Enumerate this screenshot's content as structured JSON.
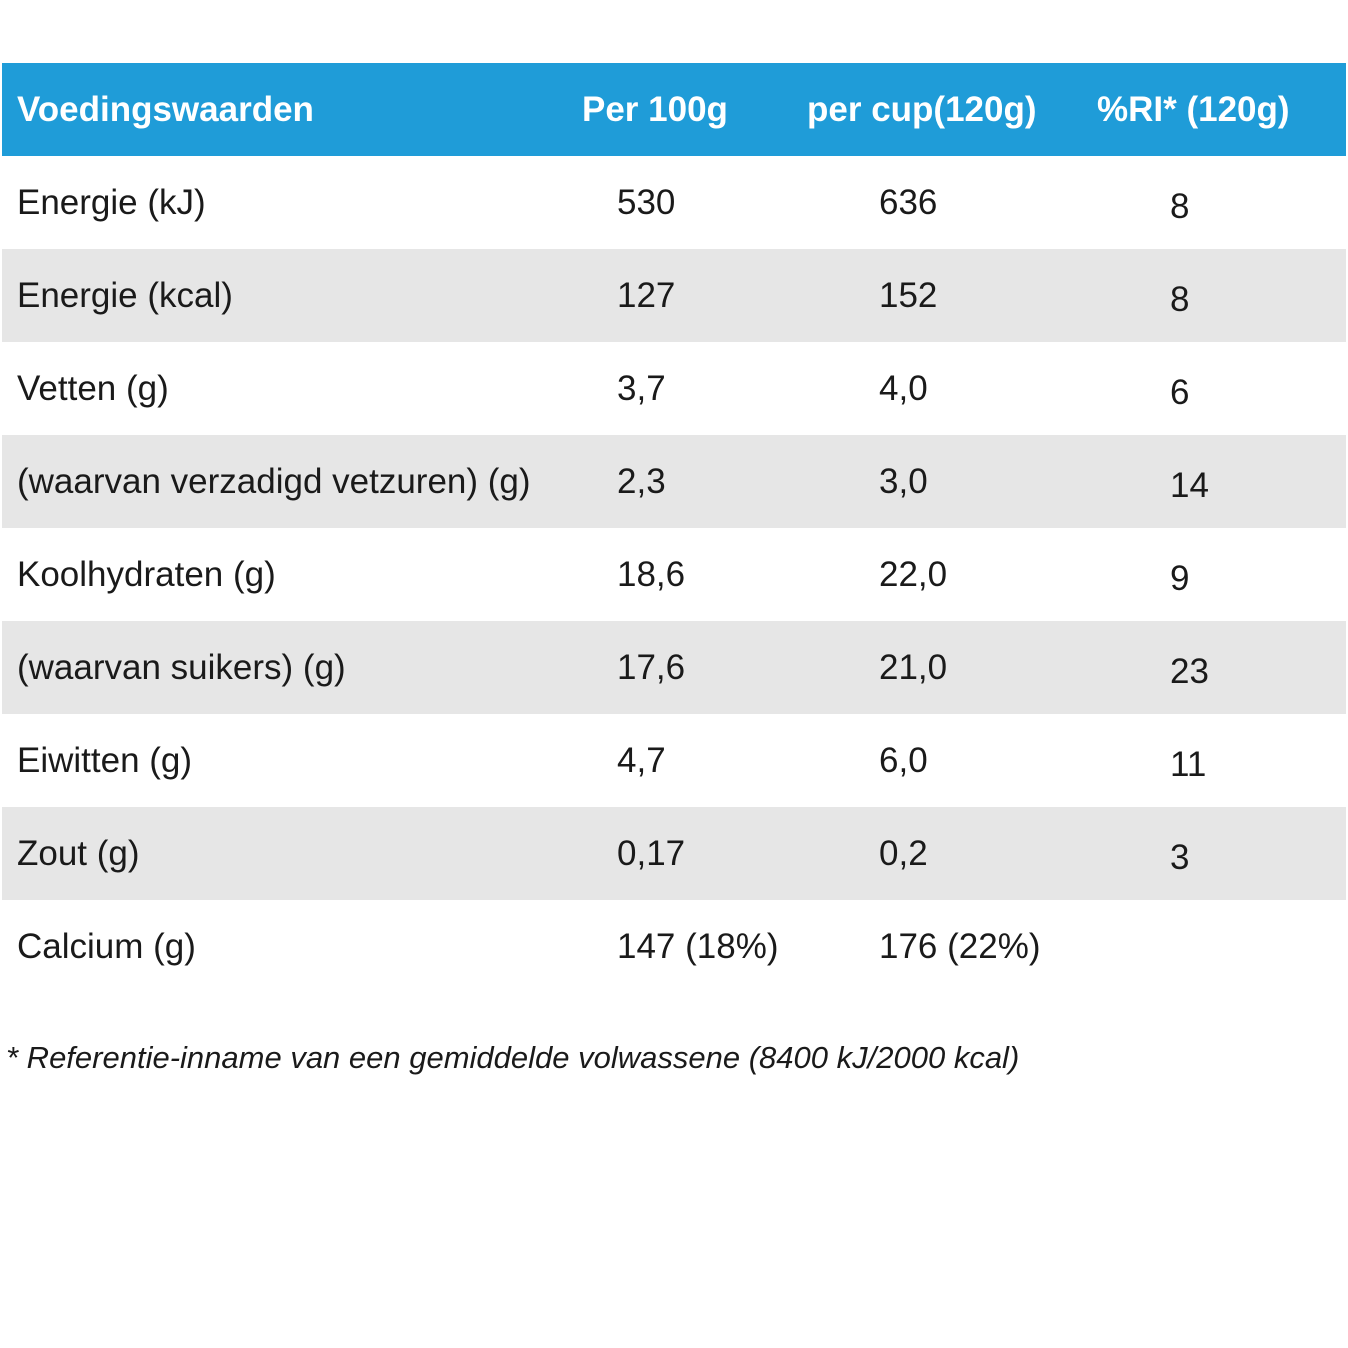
{
  "table": {
    "headers": [
      "Voedingswaarden",
      "Per 100g",
      "per cup(120g)",
      "%RI* (120g)"
    ],
    "rows": [
      {
        "name": "Energie (kJ)",
        "per100": "530",
        "percup": "636",
        "ri": "8"
      },
      {
        "name": "Energie (kcal)",
        "per100": "127",
        "percup": "152",
        "ri": "8"
      },
      {
        "name": "Vetten (g)",
        "per100": "3,7",
        "percup": "4,0",
        "ri": "6"
      },
      {
        "name": "(waarvan verzadigd vetzuren) (g)",
        "per100": "2,3",
        "percup": "3,0",
        "ri": "14"
      },
      {
        "name": "Koolhydraten (g)",
        "per100": "18,6",
        "percup": "22,0",
        "ri": "9"
      },
      {
        "name": "(waarvan suikers) (g)",
        "per100": "17,6",
        "percup": "21,0",
        "ri": "23"
      },
      {
        "name": "Eiwitten (g)",
        "per100": "4,7",
        "percup": "6,0",
        "ri": "11"
      },
      {
        "name": "Zout (g)",
        "per100": "0,17",
        "percup": "0,2",
        "ri": "3"
      },
      {
        "name": "Calcium (g)",
        "per100": "147 (18%)",
        "percup": "176 (22%)",
        "ri": ""
      }
    ]
  },
  "footnote": "* Referentie-inname van een gemiddelde volwassene (8400 kJ/2000 kcal)",
  "colors": {
    "header_bg": "#1f9cd8",
    "shaded_row_bg": "#e6e6e6"
  }
}
